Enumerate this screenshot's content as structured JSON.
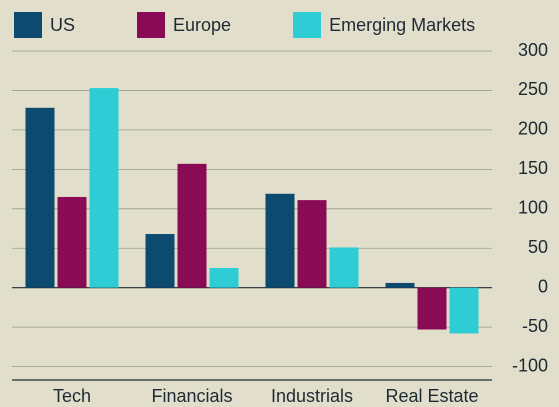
{
  "chart_data": {
    "type": "bar",
    "categories": [
      "Tech",
      "Financials",
      "Industrials",
      "Real Estate"
    ],
    "series": [
      {
        "name": "US",
        "color": "#0d4a70",
        "values": [
          228,
          68,
          119,
          6
        ]
      },
      {
        "name": "Europe",
        "color": "#8a0b55",
        "values": [
          115,
          157,
          111,
          -53
        ]
      },
      {
        "name": "Emerging Markets",
        "color": "#2ecdd6",
        "values": [
          253,
          25,
          51,
          -58
        ]
      }
    ],
    "ylim": [
      -117,
      300
    ],
    "yticks": [
      300,
      250,
      200,
      150,
      100,
      50,
      0,
      -50,
      -100
    ],
    "grid": true,
    "legend": "top"
  }
}
